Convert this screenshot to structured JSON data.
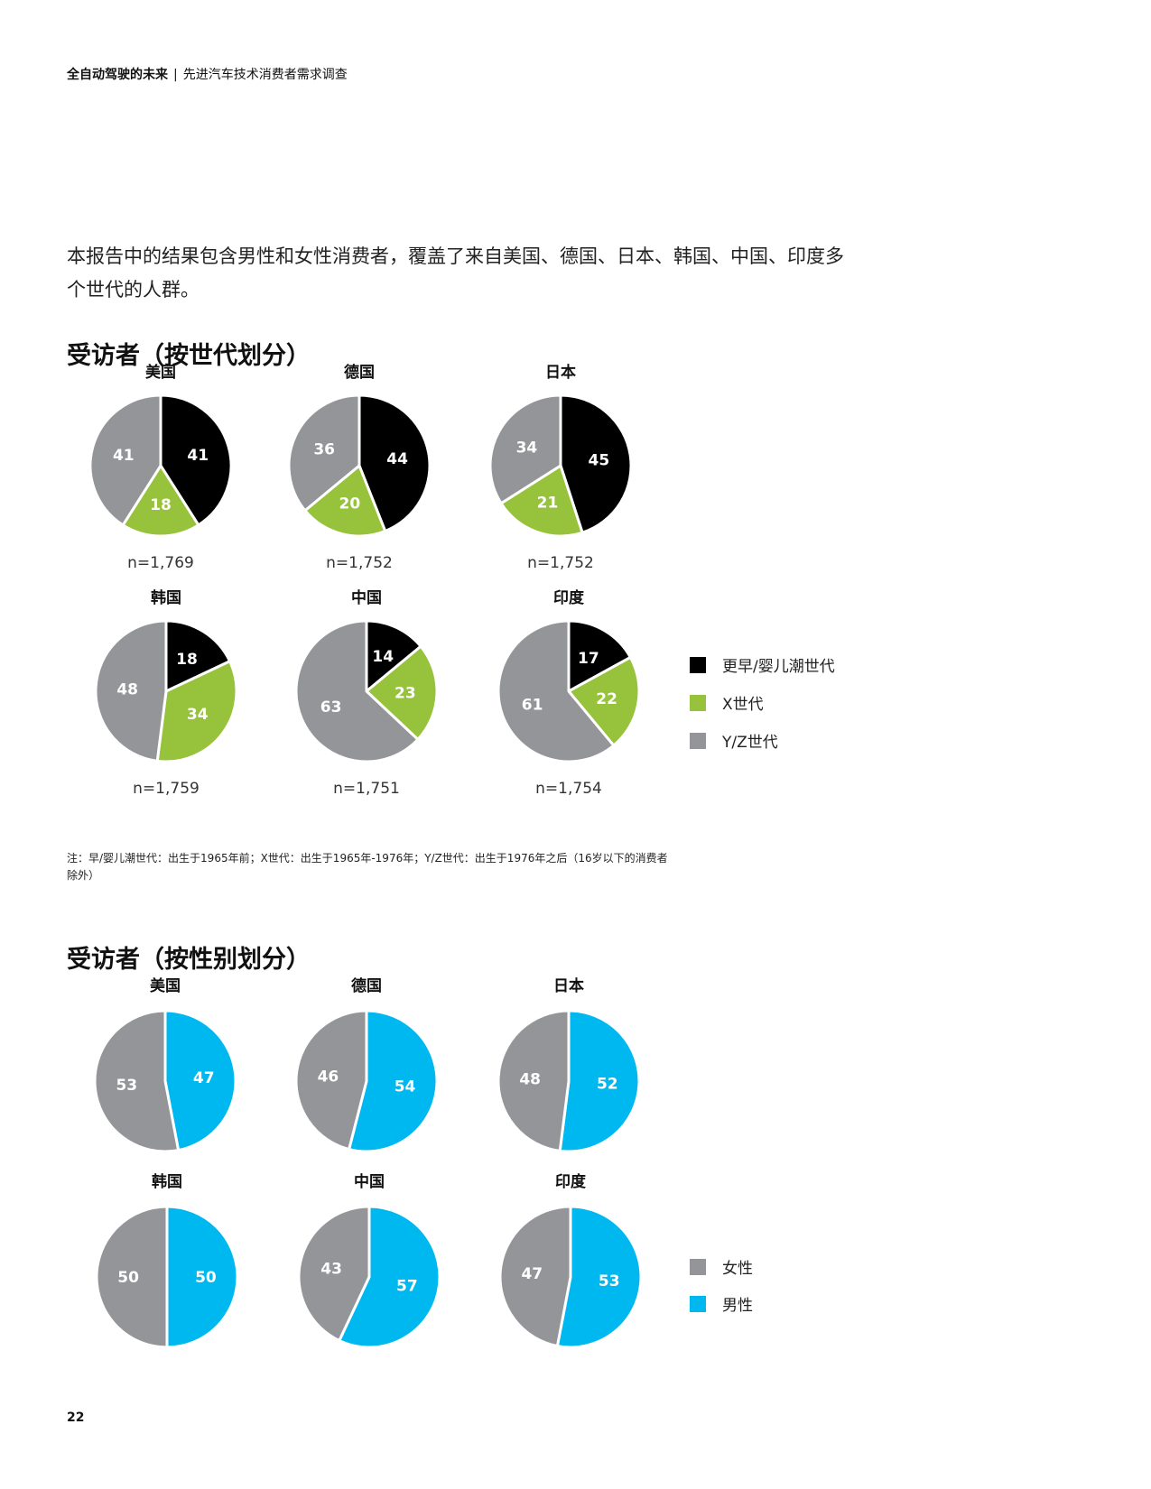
{
  "header": {
    "title": "全自动驾驶的未来",
    "separator": "|",
    "subtitle": "先进汽车技术消费者需求调查"
  },
  "intro": "本报告中的结果包含男性和女性消费者，覆盖了来自美国、德国、日本、韩国、中国、印度多个世代的人群。",
  "section_generation_title": "受访者（按世代划分）",
  "section_gender_title": "受访者（按性别划分）",
  "footnote": "注：早/婴儿潮世代：出生于1965年前；X世代：出生于1965年-1976年；Y/Z世代：出生于1976年之后（16岁以下的消费者除外）",
  "page_number": "22",
  "colors": {
    "boomer": "#000000",
    "genx": "#97C23B",
    "genyz": "#939598",
    "female": "#939598",
    "male": "#00B8F0"
  },
  "chart_data": [
    {
      "type": "pie",
      "title": "受访者（按世代划分）",
      "legend": [
        "更早/婴儿潮世代",
        "X世代",
        "Y/Z世代"
      ],
      "legend_position": "right",
      "charts": [
        {
          "country": "美国",
          "n": "n=1,769",
          "values": [
            41,
            18,
            41
          ]
        },
        {
          "country": "德国",
          "n": "n=1,752",
          "values": [
            44,
            20,
            36
          ]
        },
        {
          "country": "日本",
          "n": "n=1,752",
          "values": [
            45,
            21,
            34
          ]
        },
        {
          "country": "韩国",
          "n": "n=1,759",
          "values": [
            18,
            34,
            48
          ]
        },
        {
          "country": "中国",
          "n": "n=1,751",
          "values": [
            14,
            23,
            63
          ]
        },
        {
          "country": "印度",
          "n": "n=1,754",
          "values": [
            17,
            22,
            61
          ]
        }
      ]
    },
    {
      "type": "pie",
      "title": "受访者（按性别划分）",
      "legend": [
        "女性",
        "男性"
      ],
      "legend_position": "right",
      "charts": [
        {
          "country": "美国",
          "values": [
            47,
            53
          ]
        },
        {
          "country": "德国",
          "values": [
            54,
            46
          ]
        },
        {
          "country": "日本",
          "values": [
            52,
            48
          ]
        },
        {
          "country": "韩国",
          "values": [
            50,
            50
          ]
        },
        {
          "country": "中国",
          "values": [
            57,
            43
          ]
        },
        {
          "country": "印度",
          "values": [
            53,
            47
          ]
        }
      ]
    }
  ]
}
